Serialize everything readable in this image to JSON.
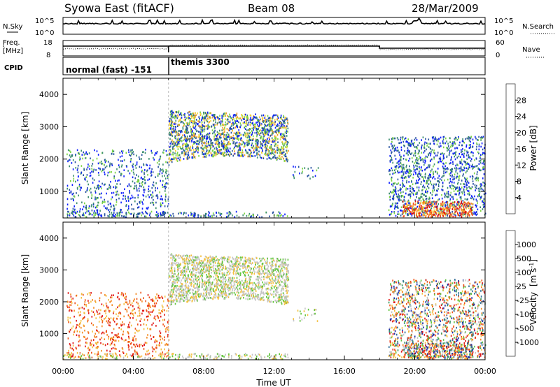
{
  "header": {
    "station": "Syowa East (fitACF)",
    "beam": "Beam 08",
    "date": "28/Mar/2009"
  },
  "noise_panel": {
    "left_label": "N.Sky",
    "right_label": "N.Search",
    "y_ticks": [
      "10^5",
      "10^0"
    ]
  },
  "freq_panel": {
    "left_label_line1": "Freq.",
    "left_label_line2": "[MHz]",
    "left_ticks": [
      "18",
      "8"
    ],
    "right_label": "Nave",
    "right_ticks": [
      "60",
      "0"
    ]
  },
  "cpid_panel": {
    "label": "CPID",
    "modes": [
      {
        "name": "normal (fast) -151",
        "start_hour": 0,
        "end_hour": 6
      },
      {
        "name": "themis 3300",
        "start_hour": 6,
        "end_hour": 24
      }
    ]
  },
  "chart_data": [
    {
      "type": "heatmap",
      "parameter": "power",
      "ylabel": "Slant Range [km]",
      "xlim": [
        0,
        24
      ],
      "ylim": [
        180,
        4500
      ],
      "y_ticks": [
        1000,
        2000,
        3000,
        4000
      ],
      "colorbar": {
        "label": "Power [dB]",
        "ticks": [
          "4",
          "8",
          "12",
          "16",
          "20",
          "24",
          "28"
        ],
        "colors": [
          "#0a1cff",
          "#2652a0",
          "#3a8c6e",
          "#7bd642",
          "#f2d13a",
          "#f49a25",
          "#f0511c",
          "#e01010"
        ]
      }
    },
    {
      "type": "heatmap",
      "parameter": "velocity",
      "ylabel": "Slant Range [km]",
      "xlabel": "Time UT",
      "xlim": [
        0,
        24
      ],
      "ylim": [
        180,
        4500
      ],
      "x_ticks": [
        "00:00",
        "04:00",
        "08:00",
        "12:00",
        "16:00",
        "20:00",
        "00:00"
      ],
      "y_ticks": [
        1000,
        2000,
        3000,
        4000
      ],
      "colorbar": {
        "label_main": "Velocity",
        "label_unit": "[m s",
        "label_sup": "-1",
        "label_end": "]",
        "ticks": [
          "1000",
          "500",
          "100",
          "25",
          "-25",
          "-100",
          "-500",
          "-1000"
        ],
        "colors": [
          "#1f2ea8",
          "#2f6e9a",
          "#3a9a66",
          "#62c43e",
          "#c4c4c4",
          "#f3c040",
          "#f38a22",
          "#ee5218",
          "#e01818"
        ]
      }
    }
  ],
  "scatter_regions": [
    {
      "name": "morning-patchy",
      "t0": 0.2,
      "t1": 6.0,
      "r0": 250,
      "r1": 2300,
      "density": 0.9
    },
    {
      "name": "themis-echo-band",
      "t0": 6.0,
      "t1": 12.8,
      "r0": 1800,
      "r1": 3500,
      "density": 3.2
    },
    {
      "name": "low-range-near",
      "t0": 0,
      "t1": 12.8,
      "r0": 200,
      "r1": 380,
      "density": 1.4
    },
    {
      "name": "afternoon-sparse",
      "t0": 13.0,
      "t1": 14.5,
      "r0": 1400,
      "r1": 1800,
      "density": 0.6
    },
    {
      "name": "evening-scatter",
      "t0": 18.5,
      "t1": 24.0,
      "r0": 250,
      "r1": 2700,
      "density": 1.6
    },
    {
      "name": "evening-strong-near",
      "t0": 19.3,
      "t1": 23.3,
      "r0": 220,
      "r1": 700,
      "density": 3.0
    }
  ]
}
